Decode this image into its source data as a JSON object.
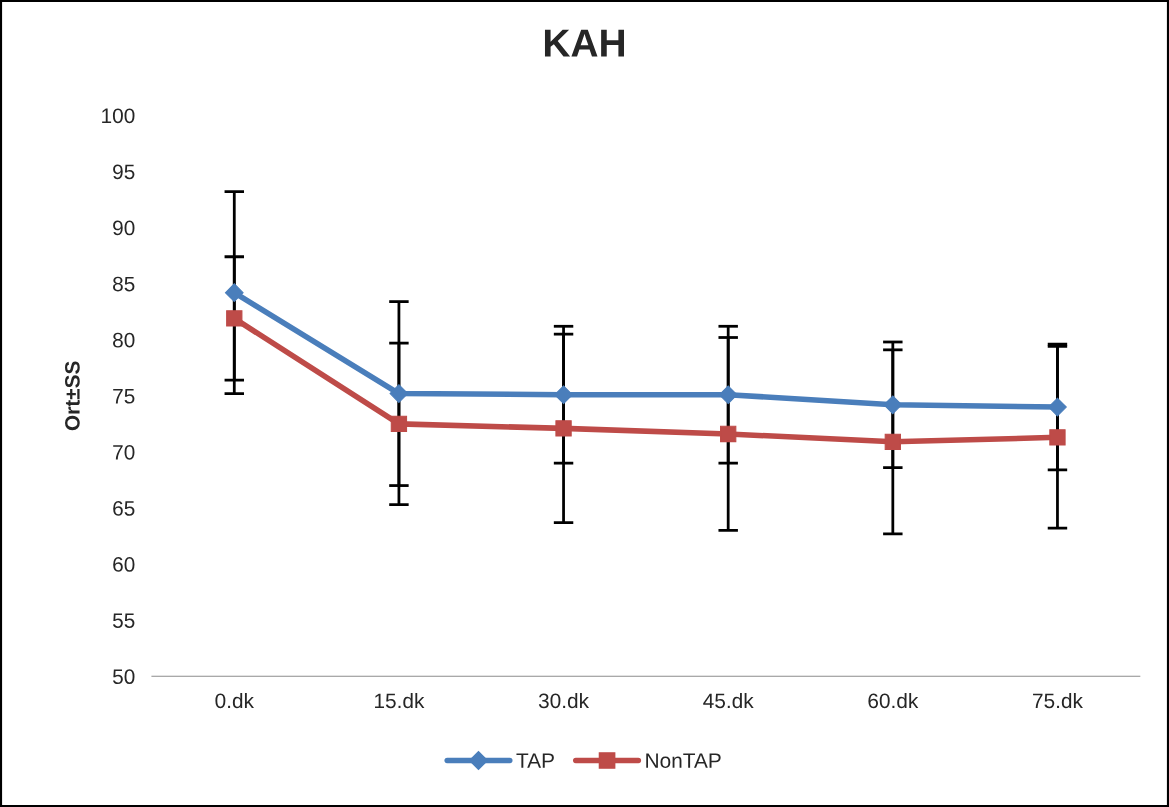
{
  "chart_data": {
    "type": "line",
    "title": "KAH",
    "ylabel": "Ort±SS",
    "categories": [
      "0.dk",
      "15.dk",
      "30.dk",
      "45.dk",
      "60.dk",
      "75.dk"
    ],
    "series": [
      {
        "name": "TAP",
        "color": "#4a7ebb",
        "marker": "diamond",
        "values": [
          84.2,
          75.2,
          75.1,
          75.1,
          74.2,
          74.0
        ],
        "errors": [
          9.0,
          8.2,
          6.1,
          6.1,
          5.6,
          5.6
        ]
      },
      {
        "name": "NonTAP",
        "color": "#be4b48",
        "marker": "square",
        "values": [
          81.9,
          72.5,
          72.1,
          71.6,
          70.9,
          71.3
        ],
        "errors": [
          5.5,
          7.2,
          8.4,
          8.6,
          8.2,
          8.1
        ]
      }
    ],
    "ylim": [
      50,
      100
    ],
    "yticks": [
      50,
      55,
      60,
      65,
      70,
      75,
      80,
      85,
      90,
      95,
      100
    ],
    "grid": false,
    "legend": "bottom",
    "line_style": "solid"
  }
}
